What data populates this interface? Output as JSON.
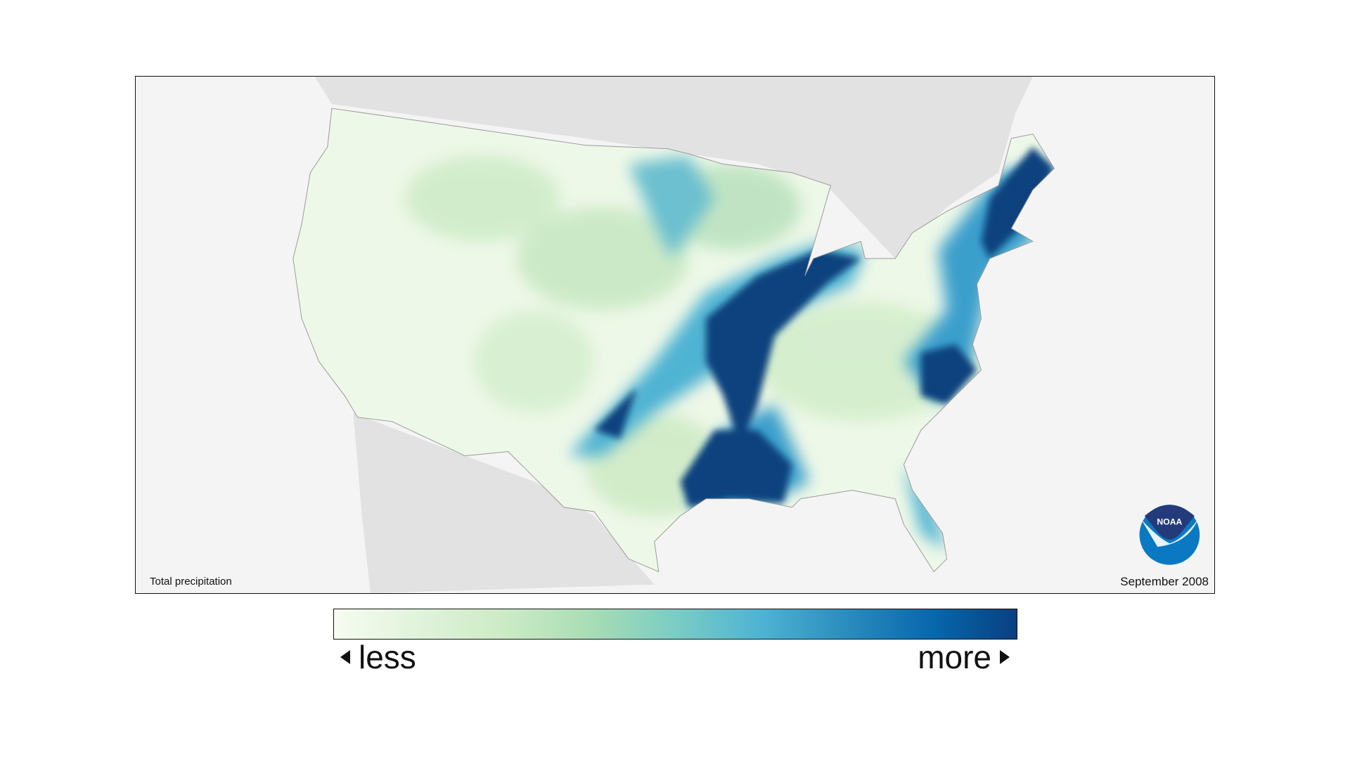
{
  "map": {
    "variable_label": "Total precipitation",
    "date_label": "September 2008",
    "logo_text": "NOAA",
    "colors": {
      "ocean": "#f4f4f4",
      "land_outside": "#e2e2e2",
      "low": "#f3faee",
      "mid": "#a9dcb8",
      "high_mid": "#4fb3d3",
      "high": "#08427e"
    }
  },
  "legend": {
    "less_label": "less",
    "more_label": "more",
    "gradient": [
      "#f7fcf0",
      "#e0f3db",
      "#ccebc5",
      "#a8ddb5",
      "#7bccc4",
      "#4eb3d3",
      "#2b8cbe",
      "#0868ac",
      "#084081"
    ]
  }
}
